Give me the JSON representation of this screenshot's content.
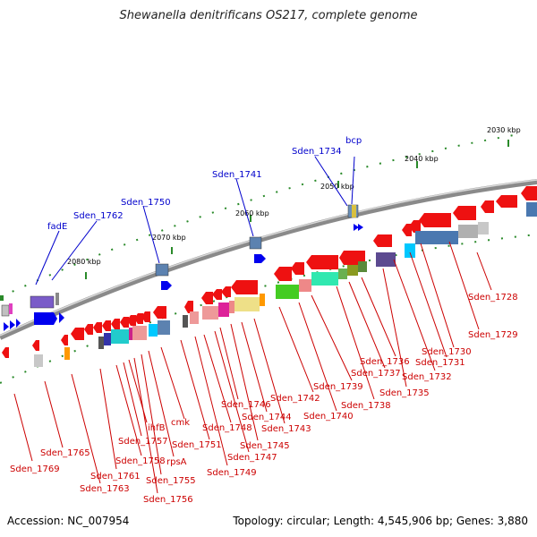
{
  "title": "Shewanella denitrificans OS217, complete genome",
  "footer": {
    "accession": "Accession: NC_007954",
    "summary": "Topology: circular; Length: 4,545,906 bp; Genes: 3,880"
  },
  "colors": {
    "forward_label": "#0000cc",
    "reverse_label": "#cc0000",
    "backbone": "#888888"
  },
  "scale_ticks": [
    "2030 kbp",
    "2040 kbp",
    "2050 kbp",
    "2060 kbp",
    "2070 kbp",
    "2080 kbp"
  ],
  "forward_labels": [
    "bcp",
    "Sden_1734",
    "Sden_1741",
    "Sden_1750",
    "Sden_1762",
    "fadE"
  ],
  "reverse_labels": [
    "Sden_1728",
    "Sden_1729",
    "Sden_1730",
    "Sden_1731",
    "Sden_1732",
    "Sden_1735",
    "Sden_1736",
    "Sden_1737",
    "Sden_1738",
    "Sden_1739",
    "Sden_1740",
    "Sden_1742",
    "Sden_1743",
    "Sden_1744",
    "Sden_1745",
    "Sden_1746",
    "Sden_1747",
    "Sden_1748",
    "Sden_1749",
    "Sden_1751",
    "cmk",
    "rpsA",
    "Sden_1755",
    "Sden_1756",
    "ihfB",
    "Sden_1757",
    "Sden_1758",
    "Sden_1761",
    "Sden_1763",
    "Sden_1765",
    "Sden_1769"
  ]
}
